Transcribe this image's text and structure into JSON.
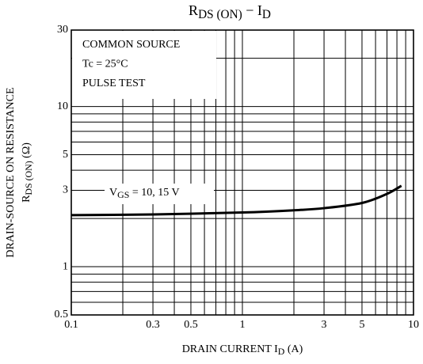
{
  "chart_data": {
    "type": "line",
    "title": [
      {
        "text": "R"
      },
      {
        "text": "DS (ON)",
        "sub": true
      },
      {
        "text": " − I"
      },
      {
        "text": "D",
        "sub": true
      }
    ],
    "ylabel": [
      [
        {
          "text": "DRAIN-SOURCE ON RESISTANCE"
        }
      ],
      [
        {
          "text": "R"
        },
        {
          "text": "DS (ON)",
          "sub": true
        },
        {
          "text": " (Ω)"
        }
      ]
    ],
    "xlabel": [
      {
        "text": "DRAIN CURRENT  I"
      },
      {
        "text": "D",
        "sub": true
      },
      {
        "text": "  (A)"
      }
    ],
    "annotations": [
      "COMMON SOURCE",
      "Tc = 25°C",
      "PULSE TEST"
    ],
    "series": [
      {
        "name": [
          {
            "text": "V"
          },
          {
            "text": "GS",
            "sub": true
          },
          {
            "text": " = 10, 15 V"
          }
        ],
        "color": "#000000",
        "x": [
          0.1,
          0.3,
          1,
          2,
          3,
          5,
          7,
          8.5
        ],
        "values": [
          2.1,
          2.12,
          2.18,
          2.25,
          2.32,
          2.5,
          2.85,
          3.2
        ]
      }
    ],
    "xscale": "log",
    "yscale": "log",
    "xlim": [
      0.1,
      10
    ],
    "ylim": [
      0.5,
      30
    ],
    "xticks": [
      0.1,
      0.3,
      0.5,
      1,
      3,
      5,
      10
    ],
    "yticks": [
      0.5,
      1,
      3,
      5,
      10,
      30
    ],
    "xgrid": [
      0.2,
      0.3,
      0.4,
      0.5,
      0.6,
      0.7,
      0.8,
      0.9,
      1,
      2,
      3,
      4,
      5,
      6,
      7,
      8,
      9
    ],
    "ygrid": [
      0.6,
      0.7,
      0.8,
      0.9,
      1,
      2,
      3,
      4,
      5,
      6,
      7,
      8,
      9,
      10,
      20
    ],
    "grid": true
  }
}
